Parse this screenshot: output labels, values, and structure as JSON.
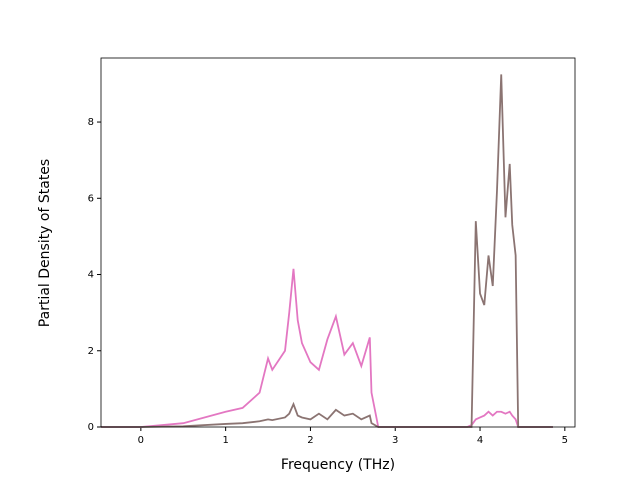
{
  "chart_data": {
    "type": "line",
    "xlabel": "Frequency (THz)",
    "ylabel": "Partial Density of States",
    "x": [
      -0.47,
      0,
      0.5,
      1.0,
      1.2,
      1.4,
      1.5,
      1.55,
      1.7,
      1.75,
      1.8,
      1.85,
      1.9,
      2.0,
      2.1,
      2.2,
      2.3,
      2.4,
      2.5,
      2.6,
      2.7,
      2.72,
      2.8,
      3.85,
      3.9,
      3.95,
      4.0,
      4.05,
      4.1,
      4.15,
      4.2,
      4.25,
      4.3,
      4.35,
      4.38,
      4.42,
      4.45,
      4.86
    ],
    "series": [
      {
        "color": "#e377c2",
        "values": [
          0,
          0,
          0.1,
          0.4,
          0.5,
          0.9,
          1.8,
          1.5,
          2.0,
          3.0,
          4.15,
          2.8,
          2.2,
          1.7,
          1.5,
          2.3,
          2.9,
          1.9,
          2.2,
          1.6,
          2.35,
          0.9,
          0,
          0,
          0.05,
          0.2,
          0.25,
          0.3,
          0.4,
          0.3,
          0.4,
          0.4,
          0.35,
          0.4,
          0.3,
          0.2,
          0,
          0
        ]
      },
      {
        "color": "#8b7472",
        "values": [
          0,
          0,
          0.02,
          0.08,
          0.1,
          0.15,
          0.2,
          0.18,
          0.25,
          0.35,
          0.6,
          0.3,
          0.25,
          0.2,
          0.35,
          0.2,
          0.45,
          0.3,
          0.35,
          0.2,
          0.3,
          0.1,
          0,
          0,
          0,
          5.4,
          3.5,
          3.2,
          4.5,
          3.7,
          6.2,
          9.25,
          5.5,
          6.9,
          5.3,
          4.5,
          0,
          0
        ]
      }
    ],
    "xlim": [
      -0.47,
      5.12
    ],
    "ylim": [
      0,
      9.68
    ],
    "xticks": [
      0,
      1,
      2,
      3,
      4,
      5
    ],
    "yticks": [
      0,
      2,
      4,
      6,
      8
    ]
  }
}
